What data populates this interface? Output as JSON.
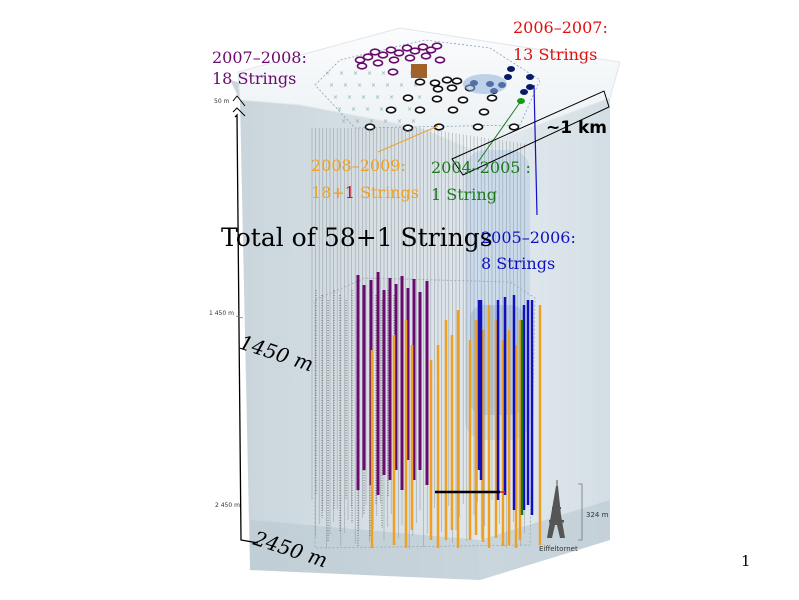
{
  "labels": {
    "y2006": "2006–2007:",
    "y2006_count": "13 Strings",
    "y2007": "2007–2008:",
    "y2007_count": "18 Strings",
    "y2008": "2008–2009:",
    "y2008_count_a": "18+",
    "y2008_count_b": "1",
    "y2008_count_c": " Strings",
    "y2004": "2004–2005 :",
    "y2004_count": "1 String",
    "y2005": "2005–2006:",
    "y2005_count": "8 Strings",
    "total": "Total of 58+1 Strings",
    "km": "~1 km",
    "depth_1450": "1450 m",
    "depth_2450": "2450 m",
    "tick_50": "50 m",
    "tick_1450": "1 450 m",
    "tick_2450": "2 450 m",
    "eiffel_height": "324 m",
    "eiffel_name": "Eiffeltornet",
    "page_number": "1"
  },
  "colors": {
    "y2006": "#e01010",
    "y2007": "#6a0a6e",
    "y2008": "#f0a020",
    "y2008_plus": "#c01020",
    "y2004": "#1a7a1a",
    "y2005": "#1010c0",
    "ice_top": "#f4f7f9",
    "ice_side": "#c8d6de",
    "ice_side_dark": "#aebfc9"
  },
  "strings": {
    "y2007_count": 18,
    "y2006_count": 13,
    "y2008_count": 19,
    "y2004_count": 1,
    "y2005_count": 8
  }
}
